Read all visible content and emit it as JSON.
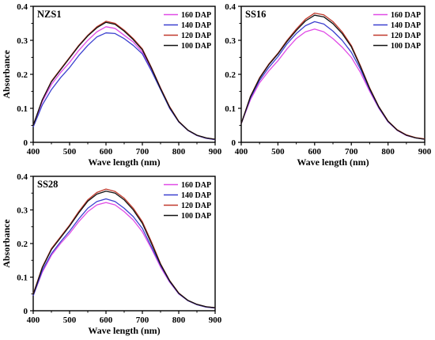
{
  "colors": {
    "160 DAP": "#e04be6",
    "140 DAP": "#3b40cf",
    "120 DAP": "#c0392b",
    "100 DAP": "#111111"
  },
  "chart_data": [
    {
      "type": "line",
      "title": "NZS1",
      "xlabel": "Wave length (nm)",
      "ylabel": "Absorbance",
      "xlim": [
        400,
        900
      ],
      "ylim": [
        0,
        0.4
      ],
      "xticks": [
        400,
        500,
        600,
        700,
        800,
        900
      ],
      "yticks": [
        0,
        0.1,
        0.2,
        0.3,
        0.4
      ],
      "grid": false,
      "legend_position": "top-right",
      "x": [
        400,
        425,
        450,
        475,
        500,
        525,
        550,
        575,
        600,
        625,
        650,
        675,
        700,
        725,
        750,
        775,
        800,
        825,
        850,
        875,
        900
      ],
      "series": [
        {
          "name": "160 DAP",
          "values": [
            0.05,
            0.12,
            0.17,
            0.205,
            0.235,
            0.27,
            0.3,
            0.325,
            0.34,
            0.335,
            0.315,
            0.295,
            0.265,
            0.215,
            0.16,
            0.1,
            0.06,
            0.035,
            0.02,
            0.012,
            0.008
          ]
        },
        {
          "name": "140 DAP",
          "values": [
            0.045,
            0.11,
            0.155,
            0.19,
            0.22,
            0.255,
            0.285,
            0.31,
            0.322,
            0.32,
            0.305,
            0.285,
            0.26,
            0.21,
            0.155,
            0.1,
            0.06,
            0.035,
            0.02,
            0.012,
            0.008
          ]
        },
        {
          "name": "120 DAP",
          "values": [
            0.05,
            0.125,
            0.18,
            0.215,
            0.25,
            0.285,
            0.315,
            0.34,
            0.356,
            0.35,
            0.33,
            0.305,
            0.275,
            0.22,
            0.16,
            0.105,
            0.062,
            0.036,
            0.021,
            0.013,
            0.009
          ]
        },
        {
          "name": "100 DAP",
          "values": [
            0.05,
            0.125,
            0.178,
            0.213,
            0.248,
            0.283,
            0.313,
            0.337,
            0.353,
            0.347,
            0.327,
            0.302,
            0.272,
            0.218,
            0.158,
            0.103,
            0.061,
            0.036,
            0.021,
            0.013,
            0.009
          ]
        }
      ]
    },
    {
      "type": "line",
      "title": "SS16",
      "xlabel": "Wave length (nm)",
      "ylabel": "",
      "xlim": [
        400,
        900
      ],
      "ylim": [
        0,
        0.4
      ],
      "xticks": [
        400,
        500,
        600,
        700,
        800,
        900
      ],
      "yticks": [
        0,
        0.1,
        0.2,
        0.3,
        0.4
      ],
      "grid": false,
      "legend_position": "top-right",
      "x": [
        400,
        425,
        450,
        475,
        500,
        525,
        550,
        575,
        600,
        625,
        650,
        675,
        700,
        725,
        750,
        775,
        800,
        825,
        850,
        875,
        900
      ],
      "series": [
        {
          "name": "160 DAP",
          "values": [
            0.055,
            0.125,
            0.175,
            0.21,
            0.24,
            0.275,
            0.305,
            0.325,
            0.333,
            0.325,
            0.305,
            0.28,
            0.25,
            0.205,
            0.15,
            0.1,
            0.06,
            0.035,
            0.02,
            0.013,
            0.009
          ]
        },
        {
          "name": "140 DAP",
          "values": [
            0.055,
            0.13,
            0.182,
            0.22,
            0.252,
            0.29,
            0.32,
            0.343,
            0.355,
            0.348,
            0.327,
            0.3,
            0.265,
            0.215,
            0.155,
            0.102,
            0.061,
            0.036,
            0.021,
            0.013,
            0.009
          ]
        },
        {
          "name": "120 DAP",
          "values": [
            0.055,
            0.135,
            0.19,
            0.23,
            0.262,
            0.3,
            0.333,
            0.362,
            0.38,
            0.375,
            0.355,
            0.325,
            0.285,
            0.225,
            0.16,
            0.105,
            0.063,
            0.037,
            0.022,
            0.014,
            0.01
          ]
        },
        {
          "name": "100 DAP",
          "values": [
            0.055,
            0.134,
            0.188,
            0.228,
            0.26,
            0.297,
            0.329,
            0.357,
            0.374,
            0.369,
            0.349,
            0.32,
            0.281,
            0.222,
            0.158,
            0.104,
            0.062,
            0.036,
            0.021,
            0.013,
            0.009
          ]
        }
      ]
    },
    {
      "type": "line",
      "title": "SS28",
      "xlabel": "Wave length (nm)",
      "ylabel": "Absorbance",
      "xlim": [
        400,
        900
      ],
      "ylim": [
        0,
        0.4
      ],
      "xticks": [
        400,
        500,
        600,
        700,
        800,
        900
      ],
      "yticks": [
        0,
        0.1,
        0.2,
        0.3,
        0.4
      ],
      "grid": false,
      "legend_position": "top-right",
      "x": [
        400,
        425,
        450,
        475,
        500,
        525,
        550,
        575,
        600,
        625,
        650,
        675,
        700,
        725,
        750,
        775,
        800,
        825,
        850,
        875,
        900
      ],
      "series": [
        {
          "name": "160 DAP",
          "values": [
            0.045,
            0.115,
            0.165,
            0.2,
            0.23,
            0.265,
            0.295,
            0.315,
            0.322,
            0.315,
            0.295,
            0.27,
            0.235,
            0.185,
            0.13,
            0.085,
            0.05,
            0.03,
            0.018,
            0.011,
            0.008
          ]
        },
        {
          "name": "140 DAP",
          "values": [
            0.045,
            0.12,
            0.17,
            0.205,
            0.237,
            0.273,
            0.305,
            0.325,
            0.333,
            0.325,
            0.305,
            0.28,
            0.245,
            0.19,
            0.135,
            0.087,
            0.051,
            0.03,
            0.018,
            0.011,
            0.008
          ]
        },
        {
          "name": "120 DAP",
          "values": [
            0.05,
            0.13,
            0.185,
            0.22,
            0.255,
            0.295,
            0.33,
            0.352,
            0.362,
            0.355,
            0.335,
            0.305,
            0.265,
            0.205,
            0.14,
            0.09,
            0.053,
            0.031,
            0.019,
            0.012,
            0.009
          ]
        },
        {
          "name": "100 DAP",
          "values": [
            0.048,
            0.128,
            0.182,
            0.217,
            0.252,
            0.291,
            0.326,
            0.347,
            0.356,
            0.35,
            0.33,
            0.3,
            0.26,
            0.2,
            0.138,
            0.089,
            0.052,
            0.031,
            0.019,
            0.012,
            0.009
          ]
        }
      ]
    }
  ]
}
